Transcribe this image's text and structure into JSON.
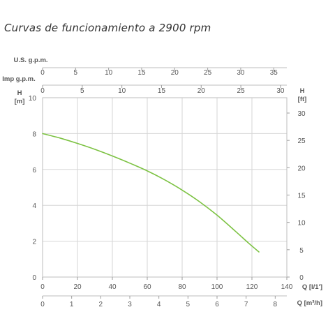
{
  "chart_data": {
    "type": "line",
    "title": "Curvas de funcionamiento a 2900 rpm",
    "series": [
      {
        "name": "",
        "color": "#7cc242",
        "x": [
          0,
          10,
          20,
          30,
          40,
          50,
          60,
          70,
          80,
          90,
          100,
          110,
          118,
          124
        ],
        "y": [
          8.0,
          7.75,
          7.45,
          7.12,
          6.75,
          6.35,
          5.92,
          5.42,
          4.85,
          4.2,
          3.45,
          2.6,
          1.9,
          1.4
        ]
      }
    ],
    "axes": {
      "x_bottom": {
        "label": "Q [l/1']",
        "min": 0,
        "max": 140,
        "ticks": [
          0,
          20,
          40,
          60,
          80,
          100,
          120,
          140
        ]
      },
      "x_bottom2": {
        "label": "Q [m³/h]",
        "min": 0,
        "max": 8.4,
        "ticks": [
          0,
          1,
          2,
          3,
          4,
          5,
          6,
          7,
          8
        ]
      },
      "x_top_us": {
        "label": "U.S. g.p.m.",
        "min": 0,
        "max": 36.98,
        "ticks": [
          0,
          5,
          10,
          15,
          20,
          25,
          30,
          35
        ]
      },
      "x_top_imp": {
        "label": "Imp g.p.m.",
        "min": 0,
        "max": 30.8,
        "ticks": [
          0,
          5,
          10,
          15,
          20,
          25,
          30
        ]
      },
      "y_left": {
        "label_line1": "H",
        "label_line2": "[m]",
        "min": 0,
        "max": 10,
        "ticks": [
          0,
          2,
          4,
          6,
          8,
          10
        ]
      },
      "y_right": {
        "label_line1": "H",
        "label_line2": "[ft]",
        "min": 0,
        "max": 32.81,
        "ticks": [
          0,
          5,
          10,
          15,
          20,
          25,
          30
        ]
      }
    },
    "grid": true
  }
}
